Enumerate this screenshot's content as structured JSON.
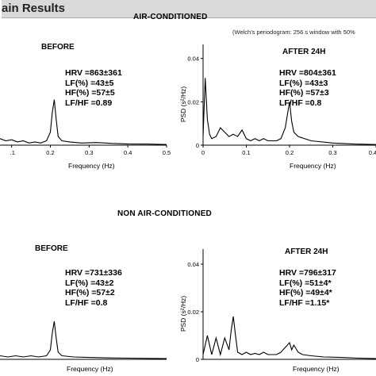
{
  "header": {
    "title": "ain Results"
  },
  "sections": {
    "ac": "AIR-CONDITIONED",
    "nonac": "NON AIR-CONDITIONED"
  },
  "note": "(Welch's periodogram: 256 s window with 50%",
  "chart_data": [
    {
      "type": "line",
      "panel": "ac-before",
      "label": "BEFORE",
      "xlabel": "Frequency (Hz)",
      "ylabel": "",
      "xlim": [
        0.07,
        0.5
      ],
      "ylim": [
        0,
        0.045
      ],
      "xticks": [
        "0.1",
        "0.2",
        "0.3",
        "0.4",
        "0.5"
      ],
      "yticks": [],
      "annotations": [
        "HRV =863±361",
        "LF(%) =43±5",
        "HF(%) =57±5",
        "LF/HF =0.89"
      ],
      "series": [
        {
          "x": [
            0.07,
            0.085,
            0.1,
            0.115,
            0.13,
            0.145,
            0.16,
            0.175,
            0.19,
            0.2,
            0.205,
            0.21,
            0.215,
            0.22,
            0.23,
            0.25,
            0.28,
            0.32,
            0.36,
            0.4,
            0.45,
            0.5
          ],
          "y": [
            0.003,
            0.002,
            0.0025,
            0.0015,
            0.002,
            0.001,
            0.0015,
            0.001,
            0.002,
            0.006,
            0.015,
            0.021,
            0.012,
            0.004,
            0.002,
            0.0015,
            0.001,
            0.0012,
            0.0008,
            0.0006,
            0.0005,
            0.0003
          ]
        }
      ]
    },
    {
      "type": "line",
      "panel": "ac-after",
      "label": "AFTER 24H",
      "xlabel": "Frequency (Hz)",
      "ylabel": "PSD (s²/Hz)",
      "xlim": [
        0,
        0.4
      ],
      "ylim": [
        0,
        0.045
      ],
      "xticks": [
        "0",
        "0.1",
        "0.2",
        "0.3",
        "0.4"
      ],
      "yticks": [
        "0",
        "0.02",
        "0.04"
      ],
      "annotations": [
        "HRV =804±361",
        "LF(%) =43±3",
        "HF(%) =57±3",
        "LF/HF =0.8"
      ],
      "series": [
        {
          "x": [
            0,
            0.005,
            0.01,
            0.015,
            0.02,
            0.03,
            0.04,
            0.05,
            0.06,
            0.07,
            0.08,
            0.09,
            0.1,
            0.11,
            0.12,
            0.13,
            0.14,
            0.15,
            0.16,
            0.17,
            0.18,
            0.19,
            0.195,
            0.2,
            0.205,
            0.21,
            0.22,
            0.25,
            0.3,
            0.35,
            0.4
          ],
          "y": [
            0.004,
            0.031,
            0.012,
            0.005,
            0.003,
            0.004,
            0.008,
            0.006,
            0.004,
            0.005,
            0.004,
            0.007,
            0.003,
            0.002,
            0.003,
            0.002,
            0.003,
            0.002,
            0.002,
            0.002,
            0.003,
            0.008,
            0.014,
            0.02,
            0.011,
            0.006,
            0.004,
            0.002,
            0.001,
            0.0005,
            0.0003
          ]
        }
      ]
    },
    {
      "type": "line",
      "panel": "nonac-before",
      "label": "BEFORE",
      "xlabel": "Frequency (Hz)",
      "ylabel": "",
      "xlim": [
        0.07,
        0.5
      ],
      "ylim": [
        0,
        0.045
      ],
      "xticks": [],
      "yticks": [],
      "annotations": [
        "HRV =731±336",
        "LF(%) =43±2",
        "HF(%) =57±2",
        "LF/HF =0.8"
      ],
      "series": [
        {
          "x": [
            0.07,
            0.09,
            0.11,
            0.13,
            0.15,
            0.17,
            0.19,
            0.2,
            0.205,
            0.21,
            0.215,
            0.22,
            0.23,
            0.26,
            0.3,
            0.35,
            0.4,
            0.45,
            0.5
          ],
          "y": [
            0.0015,
            0.001,
            0.0015,
            0.001,
            0.0015,
            0.001,
            0.0015,
            0.004,
            0.011,
            0.016,
            0.009,
            0.003,
            0.0015,
            0.001,
            0.0008,
            0.0006,
            0.0005,
            0.0004,
            0.0003
          ]
        }
      ]
    },
    {
      "type": "line",
      "panel": "nonac-after",
      "label": "AFTER 24H",
      "xlabel": "Frequency (Hz)",
      "ylabel": "PSD (s²/Hz)",
      "xlim": [
        0,
        0.4
      ],
      "ylim": [
        0,
        0.045
      ],
      "xticks": [],
      "yticks": [
        "0",
        "0.02",
        "0.04"
      ],
      "annotations": [
        "HRV =796±317",
        "LF(%) =51±4*",
        "HF(%) =49±4*",
        "LF/HF =1.15*"
      ],
      "series": [
        {
          "x": [
            0,
            0.01,
            0.02,
            0.03,
            0.04,
            0.05,
            0.06,
            0.065,
            0.07,
            0.075,
            0.08,
            0.09,
            0.1,
            0.11,
            0.12,
            0.13,
            0.14,
            0.15,
            0.16,
            0.17,
            0.18,
            0.19,
            0.2,
            0.205,
            0.21,
            0.22,
            0.23,
            0.25,
            0.28,
            0.32,
            0.36,
            0.4
          ],
          "y": [
            0.002,
            0.01,
            0.002,
            0.009,
            0.002,
            0.009,
            0.004,
            0.012,
            0.018,
            0.01,
            0.003,
            0.002,
            0.003,
            0.002,
            0.0025,
            0.002,
            0.003,
            0.002,
            0.002,
            0.002,
            0.003,
            0.005,
            0.007,
            0.004,
            0.006,
            0.003,
            0.002,
            0.0015,
            0.001,
            0.0008,
            0.0005,
            0.0003
          ]
        }
      ]
    }
  ]
}
